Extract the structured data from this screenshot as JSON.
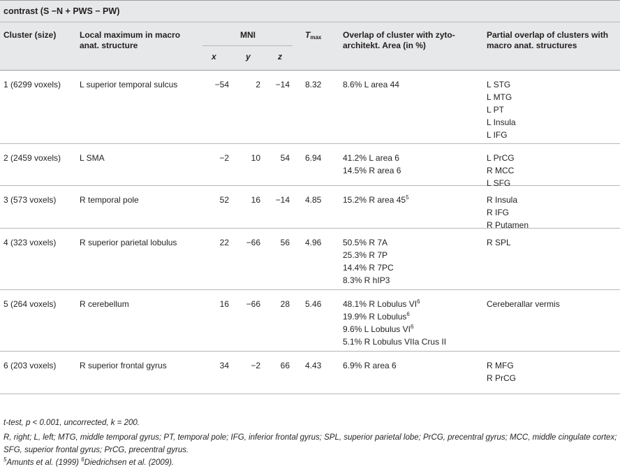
{
  "caption": "contrast (S −N + PWS − PW)",
  "headers": {
    "cluster": "Cluster (size)",
    "local_max": "Local maximum in macro anat. structure",
    "mni": "MNI",
    "x": "x",
    "y": "y",
    "z": "z",
    "tmax_t": "T",
    "tmax_sub": "max",
    "overlap": "Overlap of cluster with zyto-architekt. Area (in %)",
    "partial": "Partial overlap of clusters with macro anat. structures"
  },
  "rows": [
    {
      "cluster": "1 (6299 voxels)",
      "local_max": "L superior temporal sulcus",
      "x": "−54",
      "y": "2",
      "z": "−14",
      "tmax": "8.32",
      "overlap": [
        {
          "text": "8.6% L area 44",
          "sup": ""
        }
      ],
      "partial": [
        "L STG",
        "L MTG",
        "L PT",
        "L Insula",
        "L IFG"
      ]
    },
    {
      "cluster": "2 (2459 voxels)",
      "local_max": "L SMA",
      "x": "−2",
      "y": "10",
      "z": "54",
      "tmax": "6.94",
      "overlap": [
        {
          "text": "41.2% L area 6",
          "sup": ""
        },
        {
          "text": "14.5% R area 6",
          "sup": ""
        }
      ],
      "partial": [
        "L PrCG",
        "R MCC",
        "L SFG"
      ]
    },
    {
      "cluster": "3 (573 voxels)",
      "local_max": "R temporal pole",
      "x": "52",
      "y": "16",
      "z": "−14",
      "tmax": "4.85",
      "overlap": [
        {
          "text": "15.2% R area 45",
          "sup": "5"
        }
      ],
      "partial": [
        "R Insula",
        "R IFG",
        "R Putamen"
      ]
    },
    {
      "cluster": "4 (323 voxels)",
      "local_max": "R superior parietal lobulus",
      "x": "22",
      "y": "−66",
      "z": "56",
      "tmax": "4.96",
      "overlap": [
        {
          "text": "50.5% R 7A",
          "sup": ""
        },
        {
          "text": "25.3% R 7P",
          "sup": ""
        },
        {
          "text": "14.4% R 7PC",
          "sup": ""
        },
        {
          "text": "8.3% R hIP3",
          "sup": ""
        }
      ],
      "partial": [
        "R SPL"
      ]
    },
    {
      "cluster": "5 (264 voxels)",
      "local_max": "R cerebellum",
      "x": "16",
      "y": "−66",
      "z": "28",
      "tmax": "5.46",
      "overlap": [
        {
          "text": "48.1% R Lobulus VI",
          "sup": "6"
        },
        {
          "text": "19.9% R Lobulus",
          "sup": "6"
        },
        {
          "text": "9.6% L Lobulus VI",
          "sup": "6"
        },
        {
          "text": "5.1% R Lobulus VIIa Crus II",
          "sup": ""
        }
      ],
      "partial": [
        "Cereberallar vermis"
      ]
    },
    {
      "cluster": "6 (203 voxels)",
      "local_max": "R superior frontal gyrus",
      "x": "34",
      "y": "−2",
      "z": "66",
      "tmax": "4.43",
      "overlap": [
        {
          "text": "6.9% R area 6",
          "sup": ""
        }
      ],
      "partial": [
        "R MFG",
        "R PrCG"
      ]
    }
  ],
  "footnotes": {
    "ttest": "t-test, p < 0.001, uncorrected, k = 200.",
    "abbrev": "R, right; L, left; MTG, middle temporal gyrus; PT, temporal pole; IFG, inferior frontal gyrus; SPL, superior parietal lobe; PrCG, precentral gyrus; MCC, middle cingulate cortex; SFG, superior frontal gyrus; PrCG, precentral gyrus.",
    "ref5_mark": "5",
    "ref5_text": "Amunts et al. (1999)",
    "ref6_mark": "6",
    "ref6_text": "Diedrichsen et al. (2009)."
  }
}
